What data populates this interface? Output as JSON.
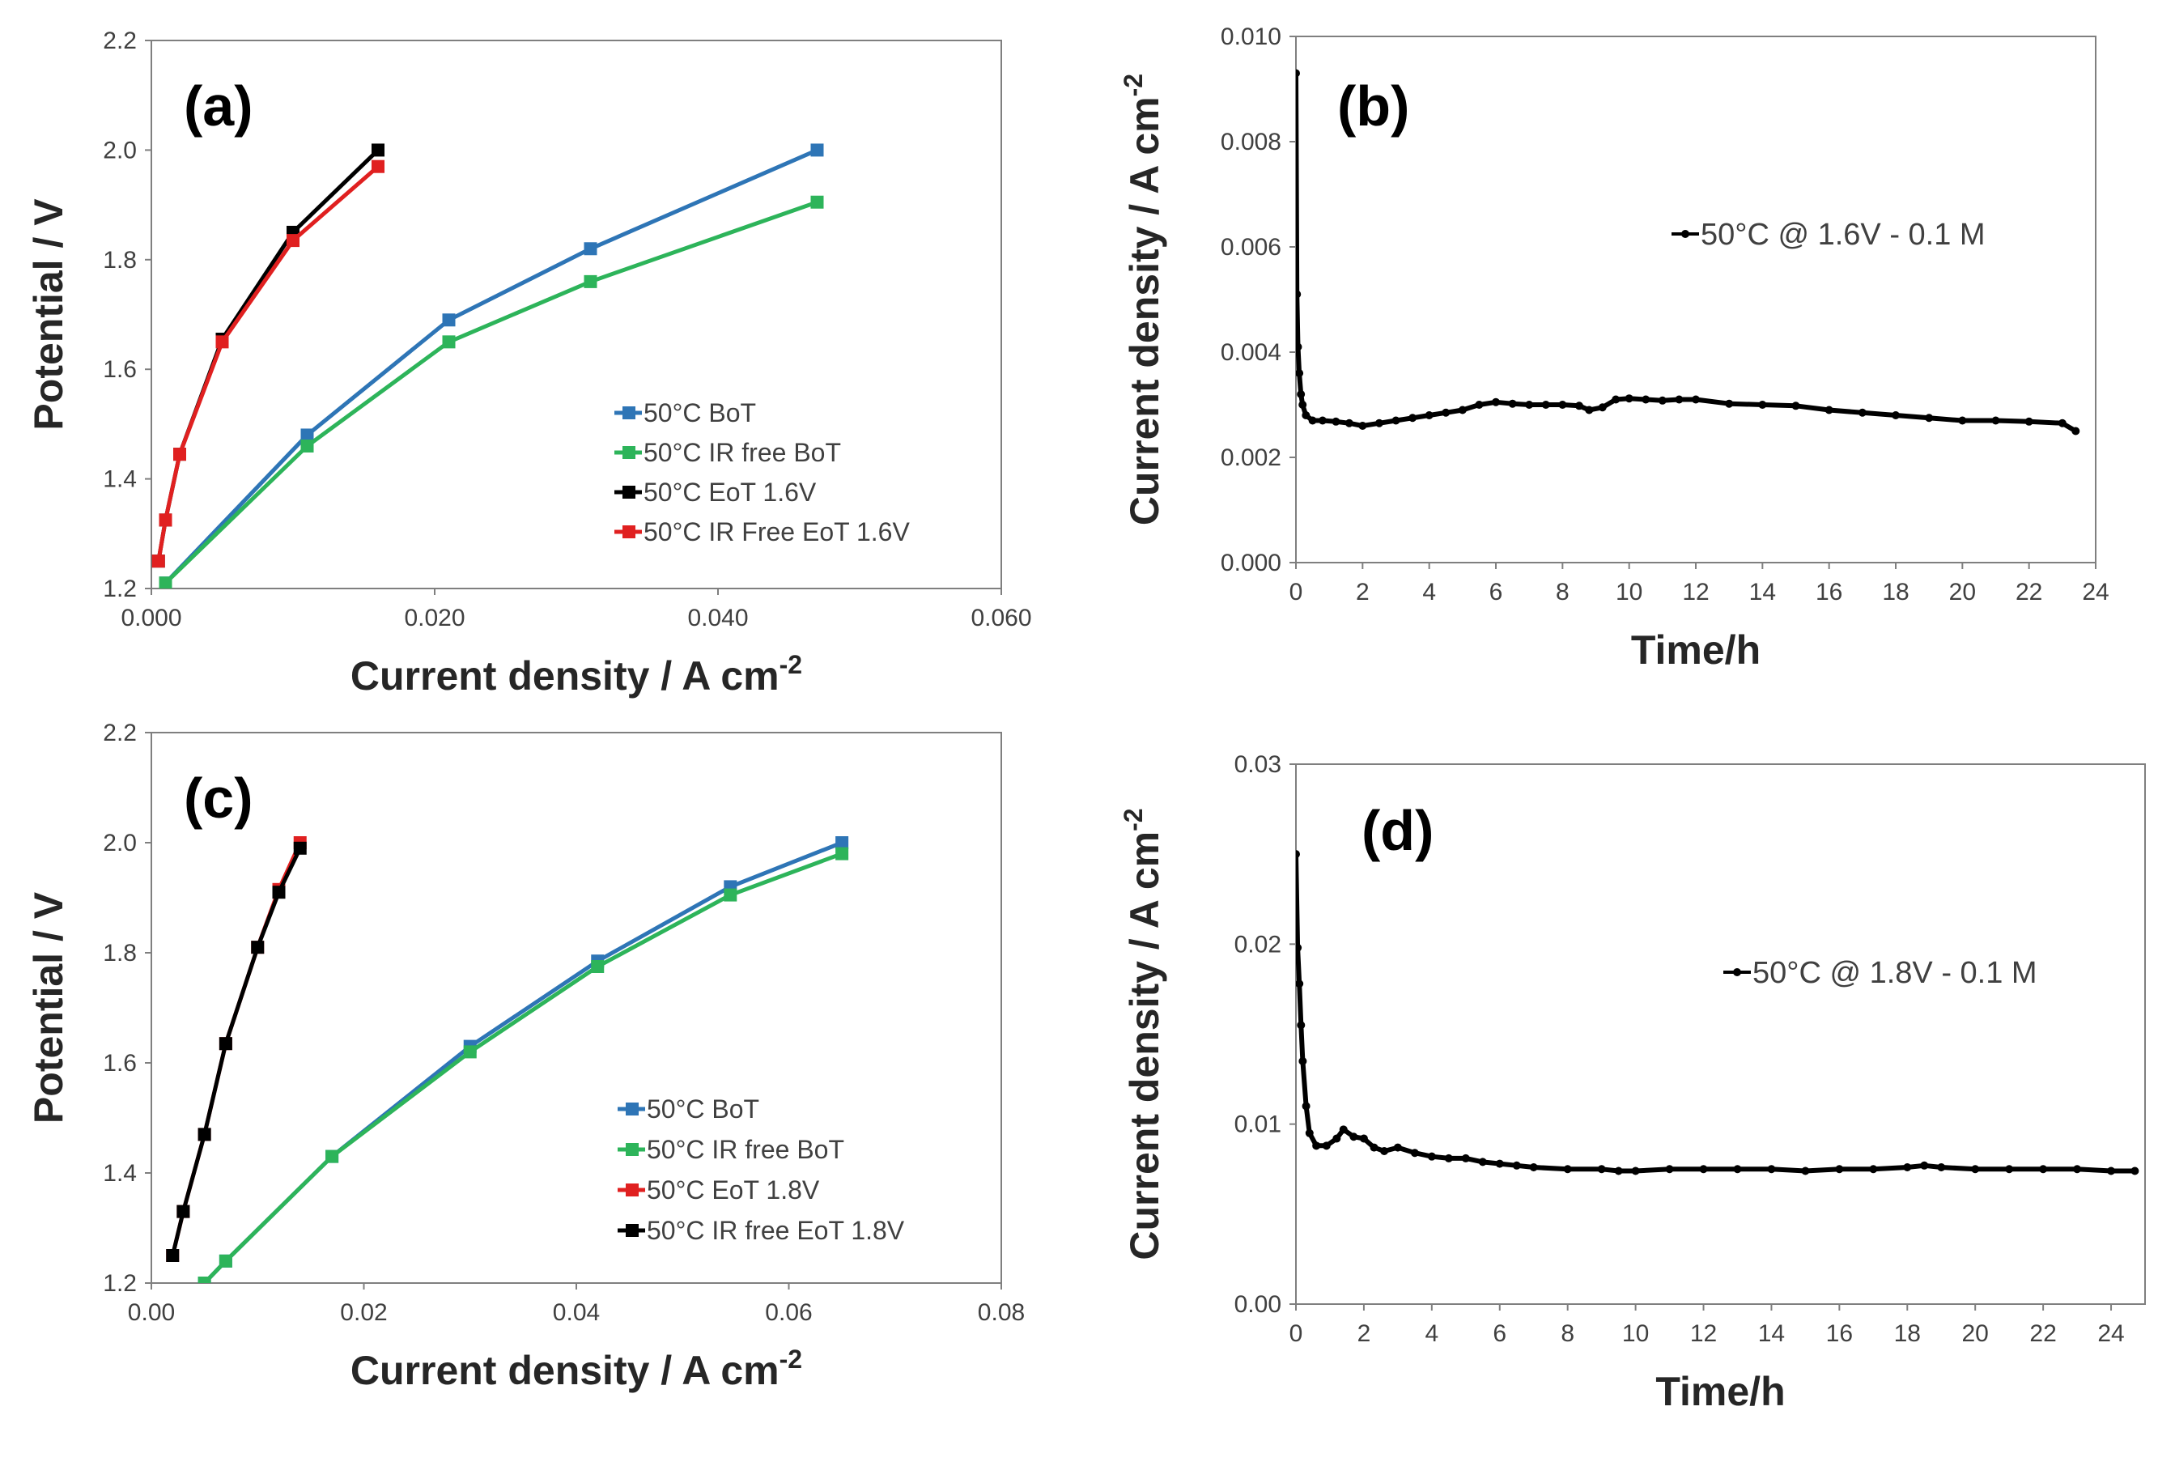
{
  "chart_data": [
    {
      "id": "a",
      "type": "line",
      "panel_label": "(a)",
      "xlabel": "Current density  / A cm",
      "xlabel_sup": "-2",
      "ylabel": "Potential  / V",
      "xlim": [
        0,
        0.06
      ],
      "ylim": [
        1.2,
        2.2
      ],
      "xticks": [
        0,
        0.02,
        0.04,
        0.06
      ],
      "xtick_labels": [
        "0.000",
        "0.020",
        "0.040",
        "0.060"
      ],
      "yticks": [
        1.2,
        1.4,
        1.6,
        1.8,
        2.0,
        2.2
      ],
      "ytick_labels": [
        "1.2",
        "1.4",
        "1.6",
        "1.8",
        "2.0",
        "2.2"
      ],
      "legend": "bottom-right",
      "series": [
        {
          "name": "50°C BoT",
          "color": "#2E75B6",
          "x": [
            0.001,
            0.011,
            0.021,
            0.031,
            0.047
          ],
          "y": [
            1.21,
            1.48,
            1.69,
            1.82,
            2.0
          ]
        },
        {
          "name": "50°C IR free BoT",
          "color": "#2DB45A",
          "x": [
            0.001,
            0.011,
            0.021,
            0.031,
            0.047
          ],
          "y": [
            1.21,
            1.46,
            1.65,
            1.76,
            1.905
          ]
        },
        {
          "name": "50°C EoT 1.6V",
          "color": "#000000",
          "x": [
            0.0005,
            0.001,
            0.002,
            0.005,
            0.01,
            0.016
          ],
          "y": [
            1.25,
            1.325,
            1.445,
            1.655,
            1.85,
            2.0
          ]
        },
        {
          "name": "50°C IR Free EoT 1.6V",
          "color": "#E02020",
          "x": [
            0.0005,
            0.001,
            0.002,
            0.005,
            0.01,
            0.016
          ],
          "y": [
            1.25,
            1.325,
            1.445,
            1.65,
            1.835,
            1.97
          ]
        }
      ]
    },
    {
      "id": "b",
      "type": "scatter",
      "panel_label": "(b)",
      "xlabel": "Time/h",
      "ylabel": "Current density  / A cm",
      "ylabel_sup": "-2",
      "xlim": [
        0,
        24
      ],
      "ylim": [
        0,
        0.01
      ],
      "xticks": [
        0,
        2,
        4,
        6,
        8,
        10,
        12,
        14,
        16,
        18,
        20,
        22,
        24
      ],
      "xtick_labels": [
        "0",
        "2",
        "4",
        "6",
        "8",
        "10",
        "12",
        "14",
        "16",
        "18",
        "20",
        "22",
        "24"
      ],
      "yticks": [
        0,
        0.002,
        0.004,
        0.006,
        0.008,
        0.01
      ],
      "ytick_labels": [
        "0.000",
        "0.002",
        "0.004",
        "0.006",
        "0.008",
        "0.010"
      ],
      "legend": "top-right",
      "series": [
        {
          "name": "50°C  @ 1.6V - 0.1 M",
          "color": "#000000",
          "x": [
            0.0,
            0.03,
            0.06,
            0.1,
            0.15,
            0.2,
            0.3,
            0.5,
            0.8,
            1.2,
            1.6,
            2.0,
            2.5,
            3.0,
            3.5,
            4.0,
            4.5,
            5.0,
            5.5,
            6.0,
            6.5,
            7.0,
            7.5,
            8.0,
            8.5,
            8.8,
            9.2,
            9.6,
            10.0,
            10.5,
            11.0,
            11.5,
            12.0,
            13.0,
            14.0,
            15.0,
            16.0,
            17.0,
            18.0,
            19.0,
            20.0,
            21.0,
            22.0,
            23.0,
            23.4
          ],
          "y": [
            0.0093,
            0.0051,
            0.0041,
            0.0036,
            0.0032,
            0.003,
            0.0028,
            0.0027,
            0.0027,
            0.00268,
            0.00265,
            0.0026,
            0.00265,
            0.0027,
            0.00275,
            0.0028,
            0.00285,
            0.0029,
            0.003,
            0.00305,
            0.00302,
            0.003,
            0.003,
            0.003,
            0.00298,
            0.0029,
            0.00295,
            0.0031,
            0.00312,
            0.0031,
            0.00308,
            0.0031,
            0.0031,
            0.00302,
            0.003,
            0.00298,
            0.0029,
            0.00285,
            0.0028,
            0.00275,
            0.0027,
            0.0027,
            0.00268,
            0.00265,
            0.0025
          ]
        }
      ]
    },
    {
      "id": "c",
      "type": "line",
      "panel_label": "(c)",
      "xlabel": "Current density  / A cm",
      "xlabel_sup": "-2",
      "ylabel": "Potential  / V",
      "xlim": [
        0,
        0.08
      ],
      "ylim": [
        1.2,
        2.2
      ],
      "xticks": [
        0,
        0.02,
        0.04,
        0.06,
        0.08
      ],
      "xtick_labels": [
        "0.00",
        "0.02",
        "0.04",
        "0.06",
        "0.08"
      ],
      "yticks": [
        1.2,
        1.4,
        1.6,
        1.8,
        2.0,
        2.2
      ],
      "ytick_labels": [
        "1.2",
        "1.4",
        "1.6",
        "1.8",
        "2.0",
        "2.2"
      ],
      "legend": "bottom-right",
      "series": [
        {
          "name": "50°C BoT",
          "color": "#2E75B6",
          "x": [
            0.005,
            0.007,
            0.017,
            0.03,
            0.042,
            0.0545,
            0.065
          ],
          "y": [
            1.2,
            1.24,
            1.43,
            1.63,
            1.785,
            1.92,
            2.0
          ]
        },
        {
          "name": "50°C IR free BoT",
          "color": "#2DB45A",
          "x": [
            0.005,
            0.007,
            0.017,
            0.03,
            0.042,
            0.0545,
            0.065
          ],
          "y": [
            1.2,
            1.24,
            1.43,
            1.62,
            1.775,
            1.905,
            1.98
          ]
        },
        {
          "name": "50°C EoT 1.8V",
          "color": "#E02020",
          "x": [
            0.002,
            0.003,
            0.005,
            0.007,
            0.01,
            0.012,
            0.014
          ],
          "y": [
            1.25,
            1.33,
            1.47,
            1.635,
            1.81,
            1.915,
            2.0
          ]
        },
        {
          "name": "50°C IR free EoT 1.8V",
          "color": "#000000",
          "x": [
            0.002,
            0.003,
            0.005,
            0.007,
            0.01,
            0.012,
            0.014
          ],
          "y": [
            1.25,
            1.33,
            1.47,
            1.635,
            1.81,
            1.91,
            1.99
          ]
        }
      ]
    },
    {
      "id": "d",
      "type": "scatter",
      "panel_label": "(d)",
      "xlabel": "Time/h",
      "ylabel": "Current density  / A cm",
      "ylabel_sup": "-2",
      "xlim": [
        0,
        25
      ],
      "ylim": [
        0,
        0.03
      ],
      "xticks": [
        0,
        2,
        4,
        6,
        8,
        10,
        12,
        14,
        16,
        18,
        20,
        22,
        24
      ],
      "xtick_labels": [
        "0",
        "2",
        "4",
        "6",
        "8",
        "10",
        "12",
        "14",
        "16",
        "18",
        "20",
        "22",
        "24"
      ],
      "yticks": [
        0,
        0.01,
        0.02,
        0.03
      ],
      "ytick_labels": [
        "0.00",
        "0.01",
        "0.02",
        "0.03"
      ],
      "legend": "top-right",
      "series": [
        {
          "name": "50°C  @ 1.8V - 0.1 M",
          "color": "#000000",
          "x": [
            0.0,
            0.05,
            0.1,
            0.15,
            0.2,
            0.3,
            0.4,
            0.6,
            0.9,
            1.2,
            1.4,
            1.7,
            2.0,
            2.3,
            2.6,
            3.0,
            3.5,
            4.0,
            4.5,
            5.0,
            5.5,
            6.0,
            6.5,
            7.0,
            8.0,
            9.0,
            9.5,
            10.0,
            11.0,
            12.0,
            13.0,
            14.0,
            15.0,
            16.0,
            17.0,
            18.0,
            18.5,
            19.0,
            20.0,
            21.0,
            22.0,
            23.0,
            24.0,
            24.7
          ],
          "y": [
            0.025,
            0.0198,
            0.0178,
            0.0155,
            0.0135,
            0.011,
            0.0095,
            0.0088,
            0.0088,
            0.0092,
            0.0097,
            0.0093,
            0.0092,
            0.0087,
            0.0085,
            0.0087,
            0.0084,
            0.0082,
            0.0081,
            0.0081,
            0.0079,
            0.0078,
            0.0077,
            0.0076,
            0.0075,
            0.0075,
            0.0074,
            0.0074,
            0.0075,
            0.0075,
            0.0075,
            0.0075,
            0.0074,
            0.0075,
            0.0075,
            0.0076,
            0.0077,
            0.0076,
            0.0075,
            0.0075,
            0.0075,
            0.0075,
            0.0074,
            0.0074
          ]
        }
      ]
    }
  ]
}
